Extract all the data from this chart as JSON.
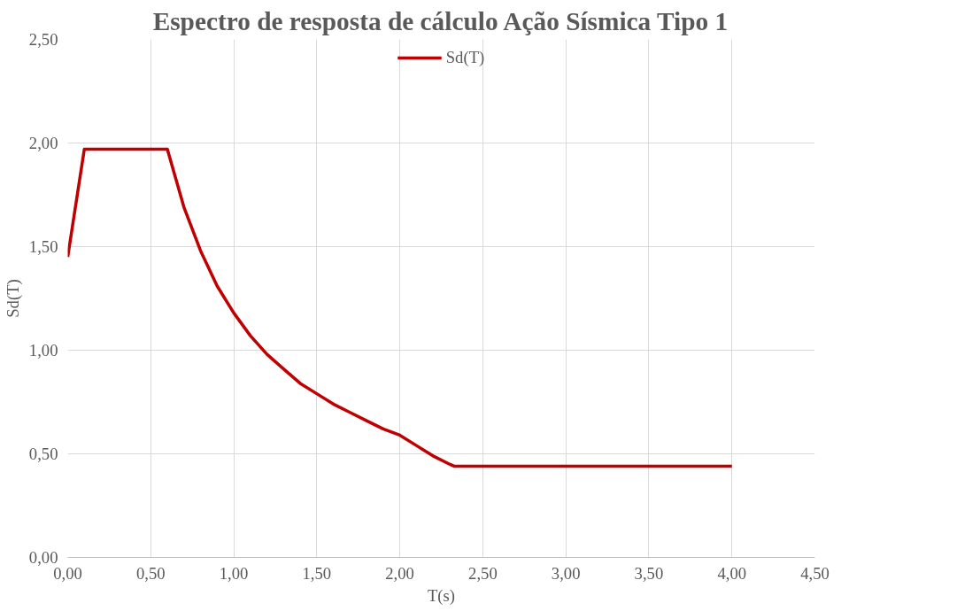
{
  "chart_data": {
    "type": "line",
    "title": "Espectro de resposta de cálculo Ação Sísmica Tipo 1",
    "xlabel": "T(s)",
    "ylabel": "Sd(T)",
    "series": [
      {
        "name": "Sd(T)",
        "color": "#c00000",
        "x": [
          0,
          0.1,
          0.6,
          0.7,
          0.8,
          0.9,
          1.0,
          1.1,
          1.2,
          1.3,
          1.4,
          1.5,
          1.6,
          1.7,
          1.8,
          1.9,
          2.0,
          2.1,
          2.2,
          2.3,
          2.33,
          4.0
        ],
        "values": [
          1.45,
          1.97,
          1.97,
          1.69,
          1.48,
          1.31,
          1.18,
          1.07,
          0.98,
          0.91,
          0.84,
          0.79,
          0.74,
          0.7,
          0.66,
          0.62,
          0.59,
          0.54,
          0.49,
          0.45,
          0.44,
          0.44
        ]
      }
    ],
    "xlim": [
      0,
      4.5
    ],
    "xticks": [
      {
        "value": 0,
        "label": "0,00"
      },
      {
        "value": 0.5,
        "label": "0,50"
      },
      {
        "value": 1,
        "label": "1,00"
      },
      {
        "value": 1.5,
        "label": "1,50"
      },
      {
        "value": 2,
        "label": "2,00"
      },
      {
        "value": 2.5,
        "label": "2,50"
      },
      {
        "value": 3,
        "label": "3,00"
      },
      {
        "value": 3.5,
        "label": "3,50"
      },
      {
        "value": 4,
        "label": "4,00"
      },
      {
        "value": 4.5,
        "label": "4,50"
      }
    ],
    "ylim": [
      0,
      2.5
    ],
    "yticks": [
      {
        "value": 0,
        "label": "0,00"
      },
      {
        "value": 0.5,
        "label": "0,50"
      },
      {
        "value": 1,
        "label": "1,00"
      },
      {
        "value": 1.5,
        "label": "1,50"
      },
      {
        "value": 2,
        "label": "2,00"
      },
      {
        "value": 2.5,
        "label": "2,50"
      }
    ],
    "grid": true,
    "legend": "top",
    "marker": "none",
    "line_style": "solid"
  }
}
